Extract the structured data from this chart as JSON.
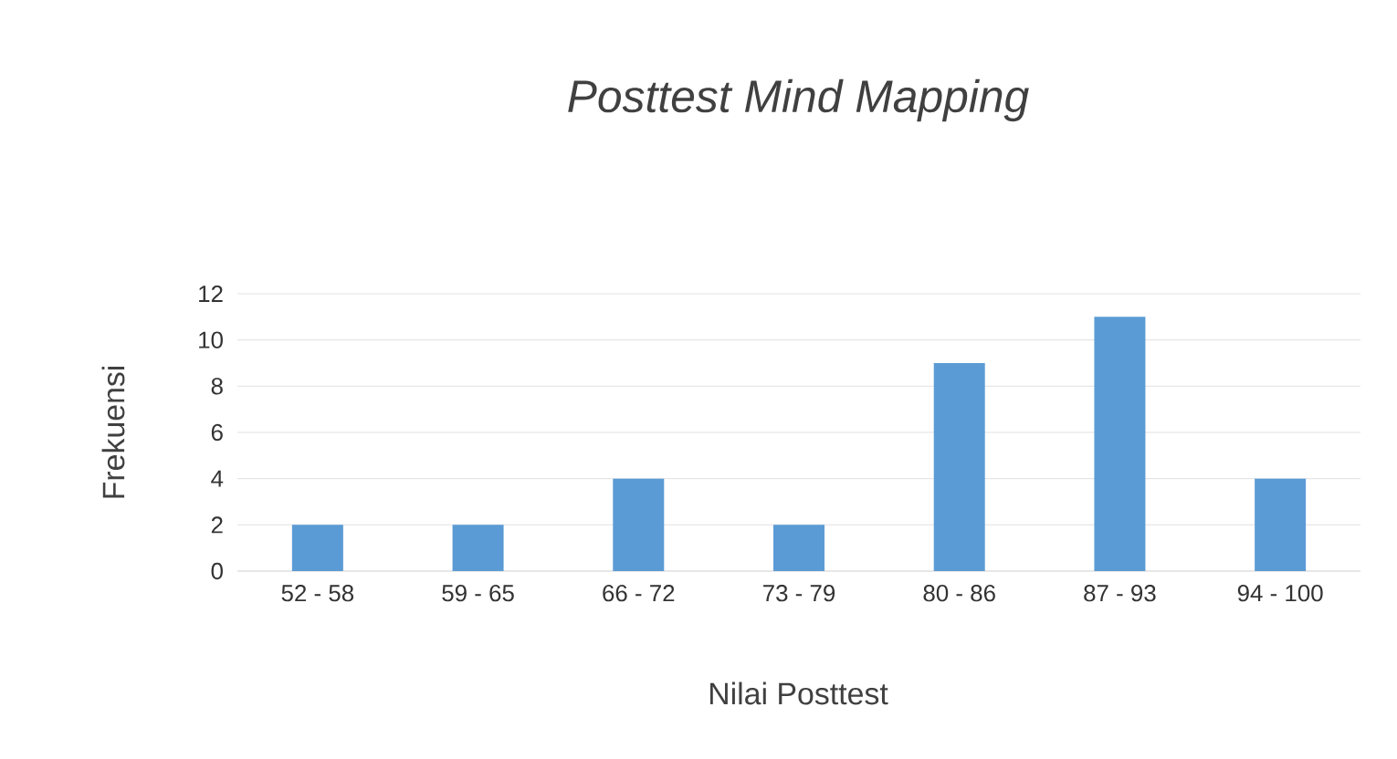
{
  "chart_data": {
    "type": "bar",
    "title": "Posttest Mind Mapping",
    "xlabel": "Nilai Posttest",
    "ylabel": "Frekuensi",
    "categories": [
      "52 - 58",
      "59 - 65",
      "66 - 72",
      "73 - 79",
      "80 - 86",
      "87 - 93",
      "94 - 100"
    ],
    "values": [
      2,
      2,
      4,
      2,
      9,
      11,
      4
    ],
    "color": "#5b9bd5",
    "ylim": [
      0,
      12
    ],
    "yticks": [
      0,
      2,
      4,
      6,
      8,
      10,
      12
    ],
    "grid": "y"
  }
}
